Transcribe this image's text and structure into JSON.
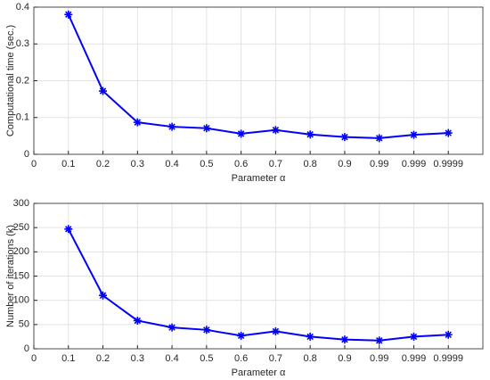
{
  "chart_data": [
    {
      "type": "line",
      "xlabel": "Parameter α",
      "ylabel": "Computational time (sec.)",
      "categories": [
        "0",
        "0.1",
        "0.2",
        "0.3",
        "0.4",
        "0.5",
        "0.6",
        "0.7",
        "0.8",
        "0.9",
        "0.99",
        "0.999",
        "0.9999"
      ],
      "series": [
        {
          "color": "#0000ff",
          "values": [
            null,
            0.38,
            0.172,
            0.087,
            0.075,
            0.071,
            0.056,
            0.066,
            0.054,
            0.047,
            0.044,
            0.053,
            0.058
          ]
        }
      ],
      "ylim": [
        0,
        0.4
      ],
      "yticks": [
        0,
        0.1,
        0.2,
        0.3,
        0.4
      ],
      "grid": true
    },
    {
      "type": "line",
      "xlabel": "Parameter α",
      "ylabel": "Number of iterations (k)",
      "categories": [
        "0",
        "0.1",
        "0.2",
        "0.3",
        "0.4",
        "0.5",
        "0.6",
        "0.7",
        "0.8",
        "0.9",
        "0.99",
        "0.999",
        "0.9999"
      ],
      "series": [
        {
          "color": "#0000ff",
          "values": [
            null,
            247,
            110,
            58,
            44,
            39,
            27,
            36,
            25,
            19,
            17,
            25,
            29
          ]
        }
      ],
      "ylim": [
        0,
        300
      ],
      "yticks": [
        0,
        50,
        100,
        150,
        200,
        250,
        300
      ],
      "grid": true
    }
  ]
}
